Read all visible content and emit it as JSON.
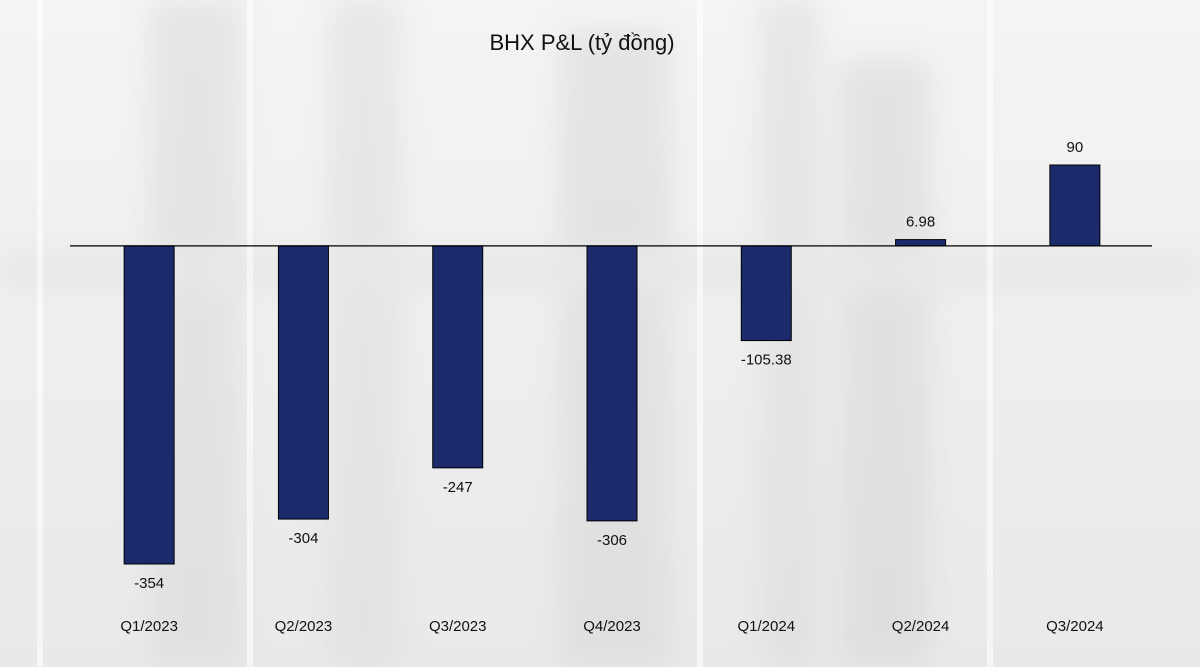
{
  "chart_data": {
    "type": "bar",
    "title": "BHX P&L (tỷ đồng)",
    "categories": [
      "Q1/2023",
      "Q2/2023",
      "Q3/2023",
      "Q4/2023",
      "Q1/2024",
      "Q2/2024",
      "Q3/2024"
    ],
    "values": [
      -354,
      -304,
      -247,
      -306,
      -105.38,
      6.98,
      90
    ],
    "color": "#1b2a6b"
  }
}
